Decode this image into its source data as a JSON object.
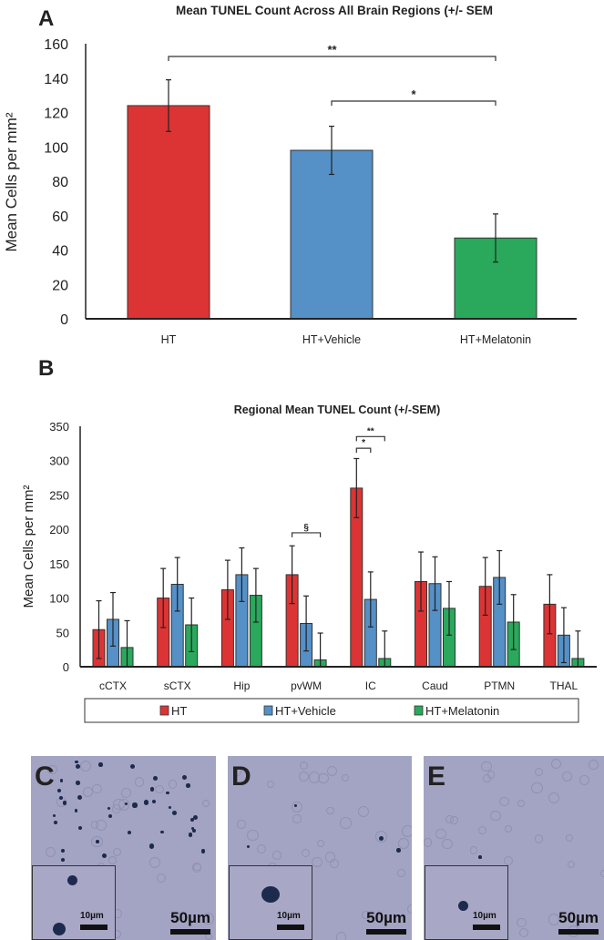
{
  "chart_data": [
    {
      "panel_label": "A",
      "type": "bar",
      "title": "Mean TUNEL Count Across All Brain Regions (+/- SEM",
      "ylabel": "Mean Cells per mm²",
      "ylim": [
        0,
        160
      ],
      "yticks": [
        "0",
        "20",
        "40",
        "60",
        "80",
        "100",
        "120",
        "140",
        "160"
      ],
      "categories": [
        "HT",
        "HT+Vehicle",
        "HT+Melatonin"
      ],
      "values": [
        124,
        98,
        47
      ],
      "sem": [
        15,
        14,
        14
      ],
      "colors": [
        "#dc3434",
        "#5590c7",
        "#2aa85c"
      ],
      "significance": [
        {
          "from": "HT",
          "to": "HT+Melatonin",
          "label": "**"
        },
        {
          "from": "HT+Vehicle",
          "to": "HT+Melatonin",
          "label": "*"
        }
      ],
      "grid": false
    },
    {
      "panel_label": "B",
      "type": "bar",
      "title": "Regional Mean TUNEL Count (+/-SEM)",
      "ylabel": "Mean Cells per mm²",
      "ylim": [
        0,
        350
      ],
      "yticks": [
        "0",
        "50",
        "100",
        "150",
        "200",
        "250",
        "300",
        "350"
      ],
      "categories": [
        "cCTX",
        "sCTX",
        "Hip",
        "pvWM",
        "IC",
        "Caud",
        "PTMN",
        "THAL"
      ],
      "series": [
        {
          "name": "HT",
          "color": "#dc3434",
          "values": [
            54,
            100,
            112,
            134,
            260,
            124,
            117,
            91
          ],
          "sem": [
            42,
            43,
            43,
            42,
            43,
            43,
            42,
            43
          ]
        },
        {
          "name": "HT+Vehicle",
          "color": "#5590c7",
          "values": [
            69,
            120,
            134,
            63,
            98,
            121,
            130,
            46
          ],
          "sem": [
            39,
            39,
            39,
            40,
            40,
            39,
            39,
            40
          ]
        },
        {
          "name": "HT+Melatonin",
          "color": "#2aa85c",
          "values": [
            28,
            61,
            104,
            10,
            12,
            85,
            65,
            12
          ],
          "sem": [
            39,
            39,
            39,
            39,
            40,
            39,
            40,
            40
          ]
        }
      ],
      "significance": [
        {
          "category": "pvWM",
          "from": "HT",
          "to": "HT+Melatonin",
          "label": "§",
          "level": 195
        },
        {
          "category": "IC",
          "from": "HT",
          "to": "HT+Vehicle",
          "label": "*",
          "level": 318
        },
        {
          "category": "IC",
          "from": "HT",
          "to": "HT+Melatonin",
          "label": "**",
          "level": 335
        }
      ],
      "legend": {
        "placement": "bottom",
        "entries": [
          "HT",
          "HT+Vehicle",
          "HT+Melatonin"
        ]
      },
      "grid": false
    }
  ],
  "micrographs": [
    {
      "label": "C",
      "scale_main": "50µm",
      "scale_inset": "10µm"
    },
    {
      "label": "D",
      "scale_main": "50µm",
      "scale_inset": "10µm"
    },
    {
      "label": "E",
      "scale_main": "50µm",
      "scale_inset": "10µm"
    }
  ]
}
